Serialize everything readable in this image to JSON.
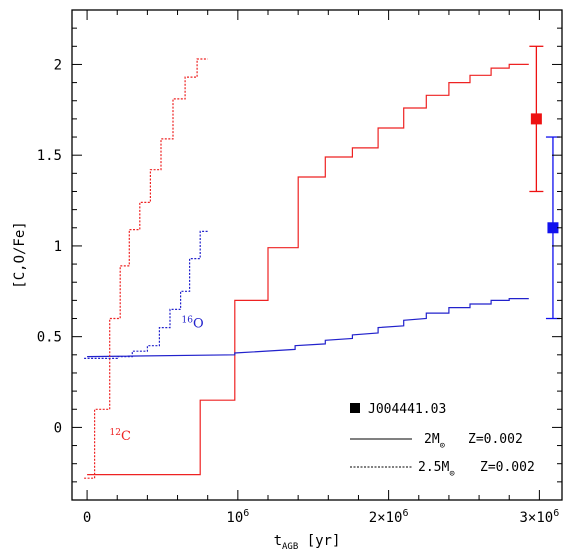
{
  "chart_data": {
    "type": "line",
    "xlabel_main": "t",
    "xlabel_sub": "AGB",
    "xlabel_unit": "[yr]",
    "ylabel": "[C,O/Fe]",
    "xlim": [
      -100000,
      3150000
    ],
    "ylim": [
      -0.4,
      2.3
    ],
    "x_ticks": [
      {
        "value": 0,
        "label": "0"
      },
      {
        "value": 1000000,
        "label": "10",
        "sup": "6"
      },
      {
        "value": 2000000,
        "label": "2×10",
        "sup": "6"
      },
      {
        "value": 3000000,
        "label": "3×10",
        "sup": "6"
      }
    ],
    "y_ticks": [
      {
        "value": 0,
        "label": "0"
      },
      {
        "value": 0.5,
        "label": "0.5"
      },
      {
        "value": 1,
        "label": "1"
      },
      {
        "value": 1.5,
        "label": "1.5"
      },
      {
        "value": 2,
        "label": "2"
      }
    ],
    "series": [
      {
        "id": "c12_2msun",
        "color": "#ee2222",
        "dash": "solid",
        "x": [
          0,
          750000,
          750000,
          980000,
          980000,
          1200000,
          1200000,
          1400000,
          1400000,
          1580000,
          1580000,
          1760000,
          1760000,
          1930000,
          1930000,
          2100000,
          2100000,
          2250000,
          2250000,
          2400000,
          2400000,
          2540000,
          2540000,
          2680000,
          2680000,
          2800000,
          2800000,
          2930000
        ],
        "y": [
          -0.26,
          -0.26,
          0.15,
          0.15,
          0.7,
          0.7,
          0.99,
          0.99,
          1.38,
          1.38,
          1.49,
          1.49,
          1.54,
          1.54,
          1.65,
          1.65,
          1.76,
          1.76,
          1.83,
          1.83,
          1.9,
          1.9,
          1.94,
          1.94,
          1.98,
          1.98,
          2.0,
          2.0
        ]
      },
      {
        "id": "o16_2msun",
        "color": "#2222cc",
        "dash": "solid",
        "x": [
          0,
          980000,
          980000,
          1380000,
          1380000,
          1580000,
          1580000,
          1760000,
          1760000,
          1930000,
          1930000,
          2100000,
          2100000,
          2250000,
          2250000,
          2400000,
          2400000,
          2540000,
          2540000,
          2680000,
          2680000,
          2800000,
          2800000,
          2930000
        ],
        "y": [
          0.39,
          0.4,
          0.41,
          0.43,
          0.45,
          0.46,
          0.48,
          0.49,
          0.51,
          0.52,
          0.55,
          0.56,
          0.59,
          0.6,
          0.63,
          0.63,
          0.66,
          0.66,
          0.68,
          0.68,
          0.7,
          0.7,
          0.71,
          0.71
        ]
      },
      {
        "id": "c12_2p5msun",
        "color": "#ee2222",
        "dash": "dotted",
        "x": [
          -20000,
          50000,
          50000,
          150000,
          150000,
          220000,
          220000,
          280000,
          280000,
          350000,
          350000,
          420000,
          420000,
          490000,
          490000,
          570000,
          570000,
          650000,
          650000,
          730000,
          730000,
          800000
        ],
        "y": [
          -0.28,
          -0.28,
          0.1,
          0.1,
          0.6,
          0.6,
          0.89,
          0.89,
          1.09,
          1.09,
          1.24,
          1.24,
          1.42,
          1.42,
          1.59,
          1.59,
          1.81,
          1.81,
          1.93,
          1.93,
          2.03,
          2.03
        ]
      },
      {
        "id": "o16_2p5msun",
        "color": "#2222cc",
        "dash": "dotted",
        "x": [
          -20000,
          200000,
          200000,
          300000,
          300000,
          400000,
          400000,
          480000,
          480000,
          550000,
          550000,
          620000,
          620000,
          680000,
          680000,
          750000,
          750000,
          800000
        ],
        "y": [
          0.38,
          0.38,
          0.39,
          0.39,
          0.42,
          0.42,
          0.45,
          0.45,
          0.55,
          0.55,
          0.65,
          0.65,
          0.75,
          0.75,
          0.93,
          0.93,
          1.08,
          1.08
        ]
      }
    ],
    "observations": [
      {
        "id": "obs_c",
        "color": "#ee1111",
        "x": 2980000,
        "y": 1.7,
        "err_low": 1.3,
        "err_high": 2.1
      },
      {
        "id": "obs_o",
        "color": "#1111ee",
        "x": 3090000,
        "y": 1.1,
        "err_low": 0.6,
        "err_high": 1.6
      }
    ],
    "annotations": [
      {
        "id": "label_c12",
        "sup": "12",
        "text": "C",
        "color": "#ee2222",
        "x": 220000,
        "y": -0.07
      },
      {
        "id": "label_o16",
        "sup": "16",
        "text": "O",
        "color": "#2222cc",
        "x": 700000,
        "y": 0.55
      }
    ],
    "legend": {
      "position": "bottom-right",
      "entries": [
        {
          "marker": "square",
          "label": "J004441.03"
        },
        {
          "line": "solid",
          "mass": "2M",
          "mass_sub": "⊙",
          "z": "Z=0.002"
        },
        {
          "line": "dotted",
          "mass": "2.5M",
          "mass_sub": "⊙",
          "z": "Z=0.002"
        }
      ]
    }
  }
}
